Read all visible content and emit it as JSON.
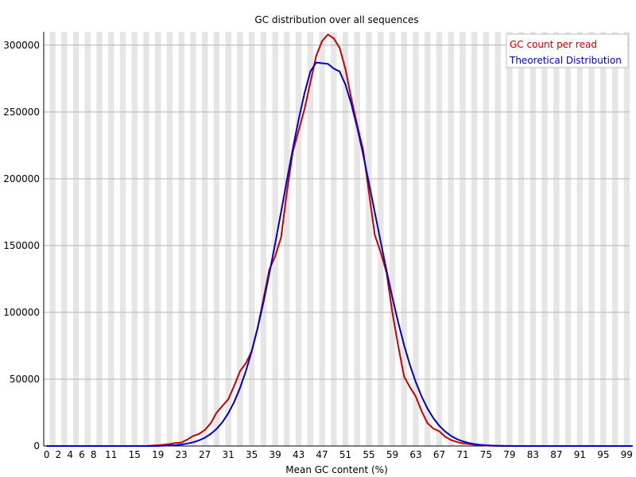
{
  "chart_data": {
    "type": "line",
    "title": "GC distribution over all sequences",
    "xlabel": "Mean GC content (%)",
    "ylabel": "",
    "xlim": [
      0,
      100
    ],
    "ylim": [
      0,
      310000
    ],
    "grid": true,
    "legend_position": "top-right",
    "x_ticks": [
      "0",
      "2",
      "4",
      "6",
      "8",
      "11",
      "15",
      "19",
      "23",
      "27",
      "31",
      "35",
      "39",
      "43",
      "47",
      "51",
      "55",
      "59",
      "63",
      "67",
      "71",
      "75",
      "79",
      "83",
      "87",
      "91",
      "95",
      "99"
    ],
    "y_ticks": [
      "0",
      "50000",
      "100000",
      "150000",
      "200000",
      "250000",
      "300000"
    ],
    "x": [
      0,
      1,
      2,
      3,
      4,
      5,
      6,
      7,
      8,
      9,
      10,
      11,
      12,
      13,
      14,
      15,
      16,
      17,
      18,
      19,
      20,
      21,
      22,
      23,
      24,
      25,
      26,
      27,
      28,
      29,
      30,
      31,
      32,
      33,
      34,
      35,
      36,
      37,
      38,
      39,
      40,
      41,
      42,
      43,
      44,
      45,
      46,
      47,
      48,
      49,
      50,
      51,
      52,
      53,
      54,
      55,
      56,
      57,
      58,
      59,
      60,
      61,
      62,
      63,
      64,
      65,
      66,
      67,
      68,
      69,
      70,
      71,
      72,
      73,
      74,
      75,
      76,
      77,
      78,
      79,
      80,
      81,
      82,
      83,
      84,
      85,
      86,
      87,
      88,
      89,
      90,
      91,
      92,
      93,
      94,
      95,
      96,
      97,
      98,
      99,
      100
    ],
    "series": [
      {
        "name": "GC count per read",
        "color": "#cc0000",
        "values": [
          0,
          0,
          0,
          0,
          0,
          0,
          0,
          0,
          0,
          0,
          0,
          0,
          0,
          0,
          0,
          0,
          0,
          0,
          300,
          600,
          1000,
          1500,
          2300,
          2600,
          4800,
          7500,
          9000,
          12000,
          17000,
          25000,
          30000,
          35000,
          45000,
          56000,
          62000,
          71000,
          88000,
          110000,
          132000,
          142000,
          156000,
          190000,
          220000,
          236000,
          252000,
          272000,
          292000,
          303000,
          308000,
          305000,
          298000,
          282000,
          260000,
          240000,
          222000,
          190000,
          158000,
          145000,
          130000,
          100000,
          75000,
          52000,
          44000,
          37000,
          26000,
          17000,
          13000,
          11000,
          7000,
          4500,
          3000,
          2000,
          1500,
          1000,
          600,
          300,
          150,
          80,
          40,
          20,
          10,
          0,
          0,
          0,
          0,
          0,
          0,
          0,
          0,
          0,
          0,
          0,
          0,
          0,
          0,
          0,
          0,
          0,
          0,
          0,
          0
        ]
      },
      {
        "name": "Theoretical Distribution",
        "color": "#0000cc",
        "values": [
          0,
          0,
          0,
          0,
          0,
          0,
          0,
          0,
          0,
          0,
          0,
          0,
          0,
          0,
          0,
          0,
          0,
          0,
          0,
          0,
          200,
          400,
          700,
          1100,
          1800,
          2800,
          4200,
          6200,
          9000,
          12800,
          17900,
          24500,
          32900,
          43400,
          56000,
          71000,
          88200,
          107600,
          128900,
          151500,
          175000,
          198800,
          222100,
          244200,
          263900,
          280200,
          287000,
          286500,
          286000,
          282500,
          280300,
          270400,
          255900,
          238400,
          218500,
          197000,
          175000,
          153000,
          131500,
          111200,
          92500,
          75600,
          60600,
          47800,
          37000,
          28000,
          20800,
          15200,
          10900,
          7600,
          5200,
          3500,
          2300,
          1400,
          900,
          500,
          300,
          180,
          100,
          50,
          20,
          0,
          0,
          0,
          0,
          0,
          0,
          0,
          0,
          0,
          0,
          0,
          0,
          0,
          0,
          0,
          0,
          0,
          0,
          0,
          0
        ]
      }
    ]
  }
}
